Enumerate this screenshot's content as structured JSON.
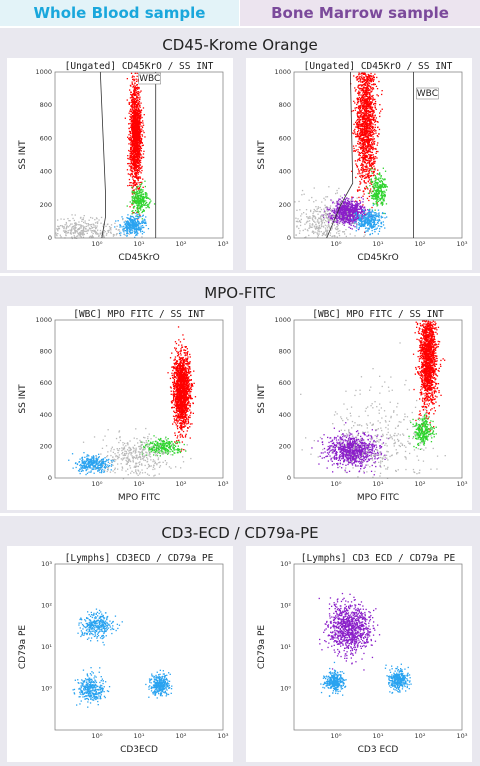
{
  "headers": {
    "left": "Whole Blood sample",
    "right": "Bone Marrow sample"
  },
  "colors": {
    "left_header": "#1aa7dc",
    "right_header": "#7b4a9b",
    "section_bg": "#e9e8ef",
    "red": "#ff0000",
    "green": "#2fd42f",
    "blue": "#2aa3f0",
    "purple": "#8a1fc9",
    "grey": "#b9b9b9"
  },
  "sections": [
    {
      "title": "CD45-Krome Orange"
    },
    {
      "title": "MPO-FITC"
    },
    {
      "title": "CD3-ECD / CD79a-PE"
    }
  ],
  "chart_data": [
    {
      "type": "scatter",
      "title": "[Ungated] CD45KrO / SS INT",
      "xlabel": "CD45KrO",
      "ylabel": "SS INT",
      "xscale": "log",
      "xlim": [
        0.1,
        1000
      ],
      "ylim": [
        0,
        1000
      ],
      "yticks": [
        "0",
        "200",
        "400",
        "600",
        "800",
        "1000"
      ],
      "xticks": [
        "10⁰",
        "10¹",
        "10²",
        "10³"
      ],
      "gates": [
        {
          "label": "WBC"
        }
      ],
      "populations": [
        {
          "color": "red",
          "x_center": 8,
          "y_center": 620,
          "x_spread": 0.07,
          "y_spread": 150
        },
        {
          "color": "green",
          "x_center": 10,
          "y_center": 230,
          "x_spread": 0.1,
          "y_spread": 35
        },
        {
          "color": "blue",
          "x_center": 7,
          "y_center": 80,
          "x_spread": 0.15,
          "y_spread": 25
        },
        {
          "color": "grey",
          "x_center": 0.5,
          "y_center": 50,
          "x_spread": 0.45,
          "y_spread": 40
        }
      ]
    },
    {
      "type": "scatter",
      "title": "[Ungated] CD45KrO / SS INT",
      "xlabel": "CD45KrO",
      "ylabel": "SS INT",
      "xscale": "log",
      "xlim": [
        0.1,
        1000
      ],
      "ylim": [
        0,
        1000
      ],
      "yticks": [
        "0",
        "200",
        "400",
        "600",
        "800",
        "1000"
      ],
      "xticks": [
        "10⁰",
        "10¹",
        "10²",
        "10³"
      ],
      "gates": [
        {
          "label": "WBC"
        }
      ],
      "populations": [
        {
          "color": "red",
          "x_center": 5,
          "y_center": 700,
          "x_spread": 0.12,
          "y_spread": 200
        },
        {
          "color": "green",
          "x_center": 10,
          "y_center": 280,
          "x_spread": 0.1,
          "y_spread": 50
        },
        {
          "color": "purple",
          "x_center": 1.8,
          "y_center": 160,
          "x_spread": 0.2,
          "y_spread": 35
        },
        {
          "color": "blue",
          "x_center": 6,
          "y_center": 110,
          "x_spread": 0.15,
          "y_spread": 30
        },
        {
          "color": "grey",
          "x_center": 0.5,
          "y_center": 100,
          "x_spread": 0.35,
          "y_spread": 70
        }
      ]
    },
    {
      "type": "scatter",
      "title": "[WBC] MPO FITC / SS INT",
      "xlabel": "MPO FITC",
      "ylabel": "SS INT",
      "xscale": "log",
      "xlim": [
        0.1,
        1000
      ],
      "ylim": [
        0,
        1000
      ],
      "yticks": [
        "0",
        "200",
        "400",
        "600",
        "800",
        "1000"
      ],
      "xticks": [
        "10⁰",
        "10¹",
        "10²",
        "10³"
      ],
      "populations": [
        {
          "color": "red",
          "x_center": 100,
          "y_center": 560,
          "x_spread": 0.1,
          "y_spread": 120
        },
        {
          "color": "green",
          "x_center": 35,
          "y_center": 200,
          "x_spread": 0.2,
          "y_spread": 25
        },
        {
          "color": "blue",
          "x_center": 0.8,
          "y_center": 90,
          "x_spread": 0.2,
          "y_spread": 25
        },
        {
          "color": "grey",
          "x_center": 8,
          "y_center": 150,
          "x_spread": 0.4,
          "y_spread": 60
        }
      ]
    },
    {
      "type": "scatter",
      "title": "[WBC] MPO FITC / SS INT",
      "xlabel": "MPO FITC",
      "ylabel": "SS INT",
      "xscale": "log",
      "xlim": [
        0.1,
        1000
      ],
      "ylim": [
        0,
        1000
      ],
      "yticks": [
        "0",
        "200",
        "400",
        "600",
        "800",
        "1000"
      ],
      "xticks": [
        "10⁰",
        "10¹",
        "10²",
        "10³"
      ],
      "populations": [
        {
          "color": "red",
          "x_center": 150,
          "y_center": 760,
          "x_spread": 0.1,
          "y_spread": 150
        },
        {
          "color": "green",
          "x_center": 120,
          "y_center": 300,
          "x_spread": 0.12,
          "y_spread": 40
        },
        {
          "color": "purple",
          "x_center": 2.5,
          "y_center": 180,
          "x_spread": 0.3,
          "y_spread": 50
        },
        {
          "color": "grey",
          "x_center": 10,
          "y_center": 250,
          "x_spread": 0.6,
          "y_spread": 150
        }
      ]
    },
    {
      "type": "scatter",
      "title": "[Lymphs] CD3ECD / CD79a PE",
      "xlabel": "CD3ECD",
      "ylabel": "CD79a PE",
      "xscale": "log",
      "yscale": "log",
      "xlim": [
        0.1,
        1000
      ],
      "ylim": [
        0.1,
        1000
      ],
      "yticks": [
        "10⁰",
        "10¹",
        "10²",
        "10³"
      ],
      "xticks": [
        "10⁰",
        "10¹",
        "10²",
        "10³"
      ],
      "populations": [
        {
          "color": "blue",
          "x_center": 1,
          "y_center": 35,
          "x_spread": 0.2,
          "y_spread": 0.15
        },
        {
          "color": "blue",
          "x_center": 0.7,
          "y_center": 1,
          "x_spread": 0.15,
          "y_spread": 0.15
        },
        {
          "color": "blue",
          "x_center": 30,
          "y_center": 1.3,
          "x_spread": 0.12,
          "y_spread": 0.12
        }
      ]
    },
    {
      "type": "scatter",
      "title": "[Lymphs] CD3 ECD / CD79a PE",
      "xlabel": "CD3 ECD",
      "ylabel": "CD79a PE",
      "xscale": "log",
      "yscale": "log",
      "xlim": [
        0.1,
        1000
      ],
      "ylim": [
        0.1,
        1000
      ],
      "yticks": [
        "10⁰",
        "10¹",
        "10²",
        "10³"
      ],
      "xticks": [
        "10⁰",
        "10¹",
        "10²",
        "10³"
      ],
      "populations": [
        {
          "color": "purple",
          "x_center": 2,
          "y_center": 30,
          "x_spread": 0.25,
          "y_spread": 0.3
        },
        {
          "color": "blue",
          "x_center": 0.9,
          "y_center": 1.5,
          "x_spread": 0.12,
          "y_spread": 0.12
        },
        {
          "color": "blue",
          "x_center": 30,
          "y_center": 1.7,
          "x_spread": 0.12,
          "y_spread": 0.12
        }
      ]
    }
  ]
}
